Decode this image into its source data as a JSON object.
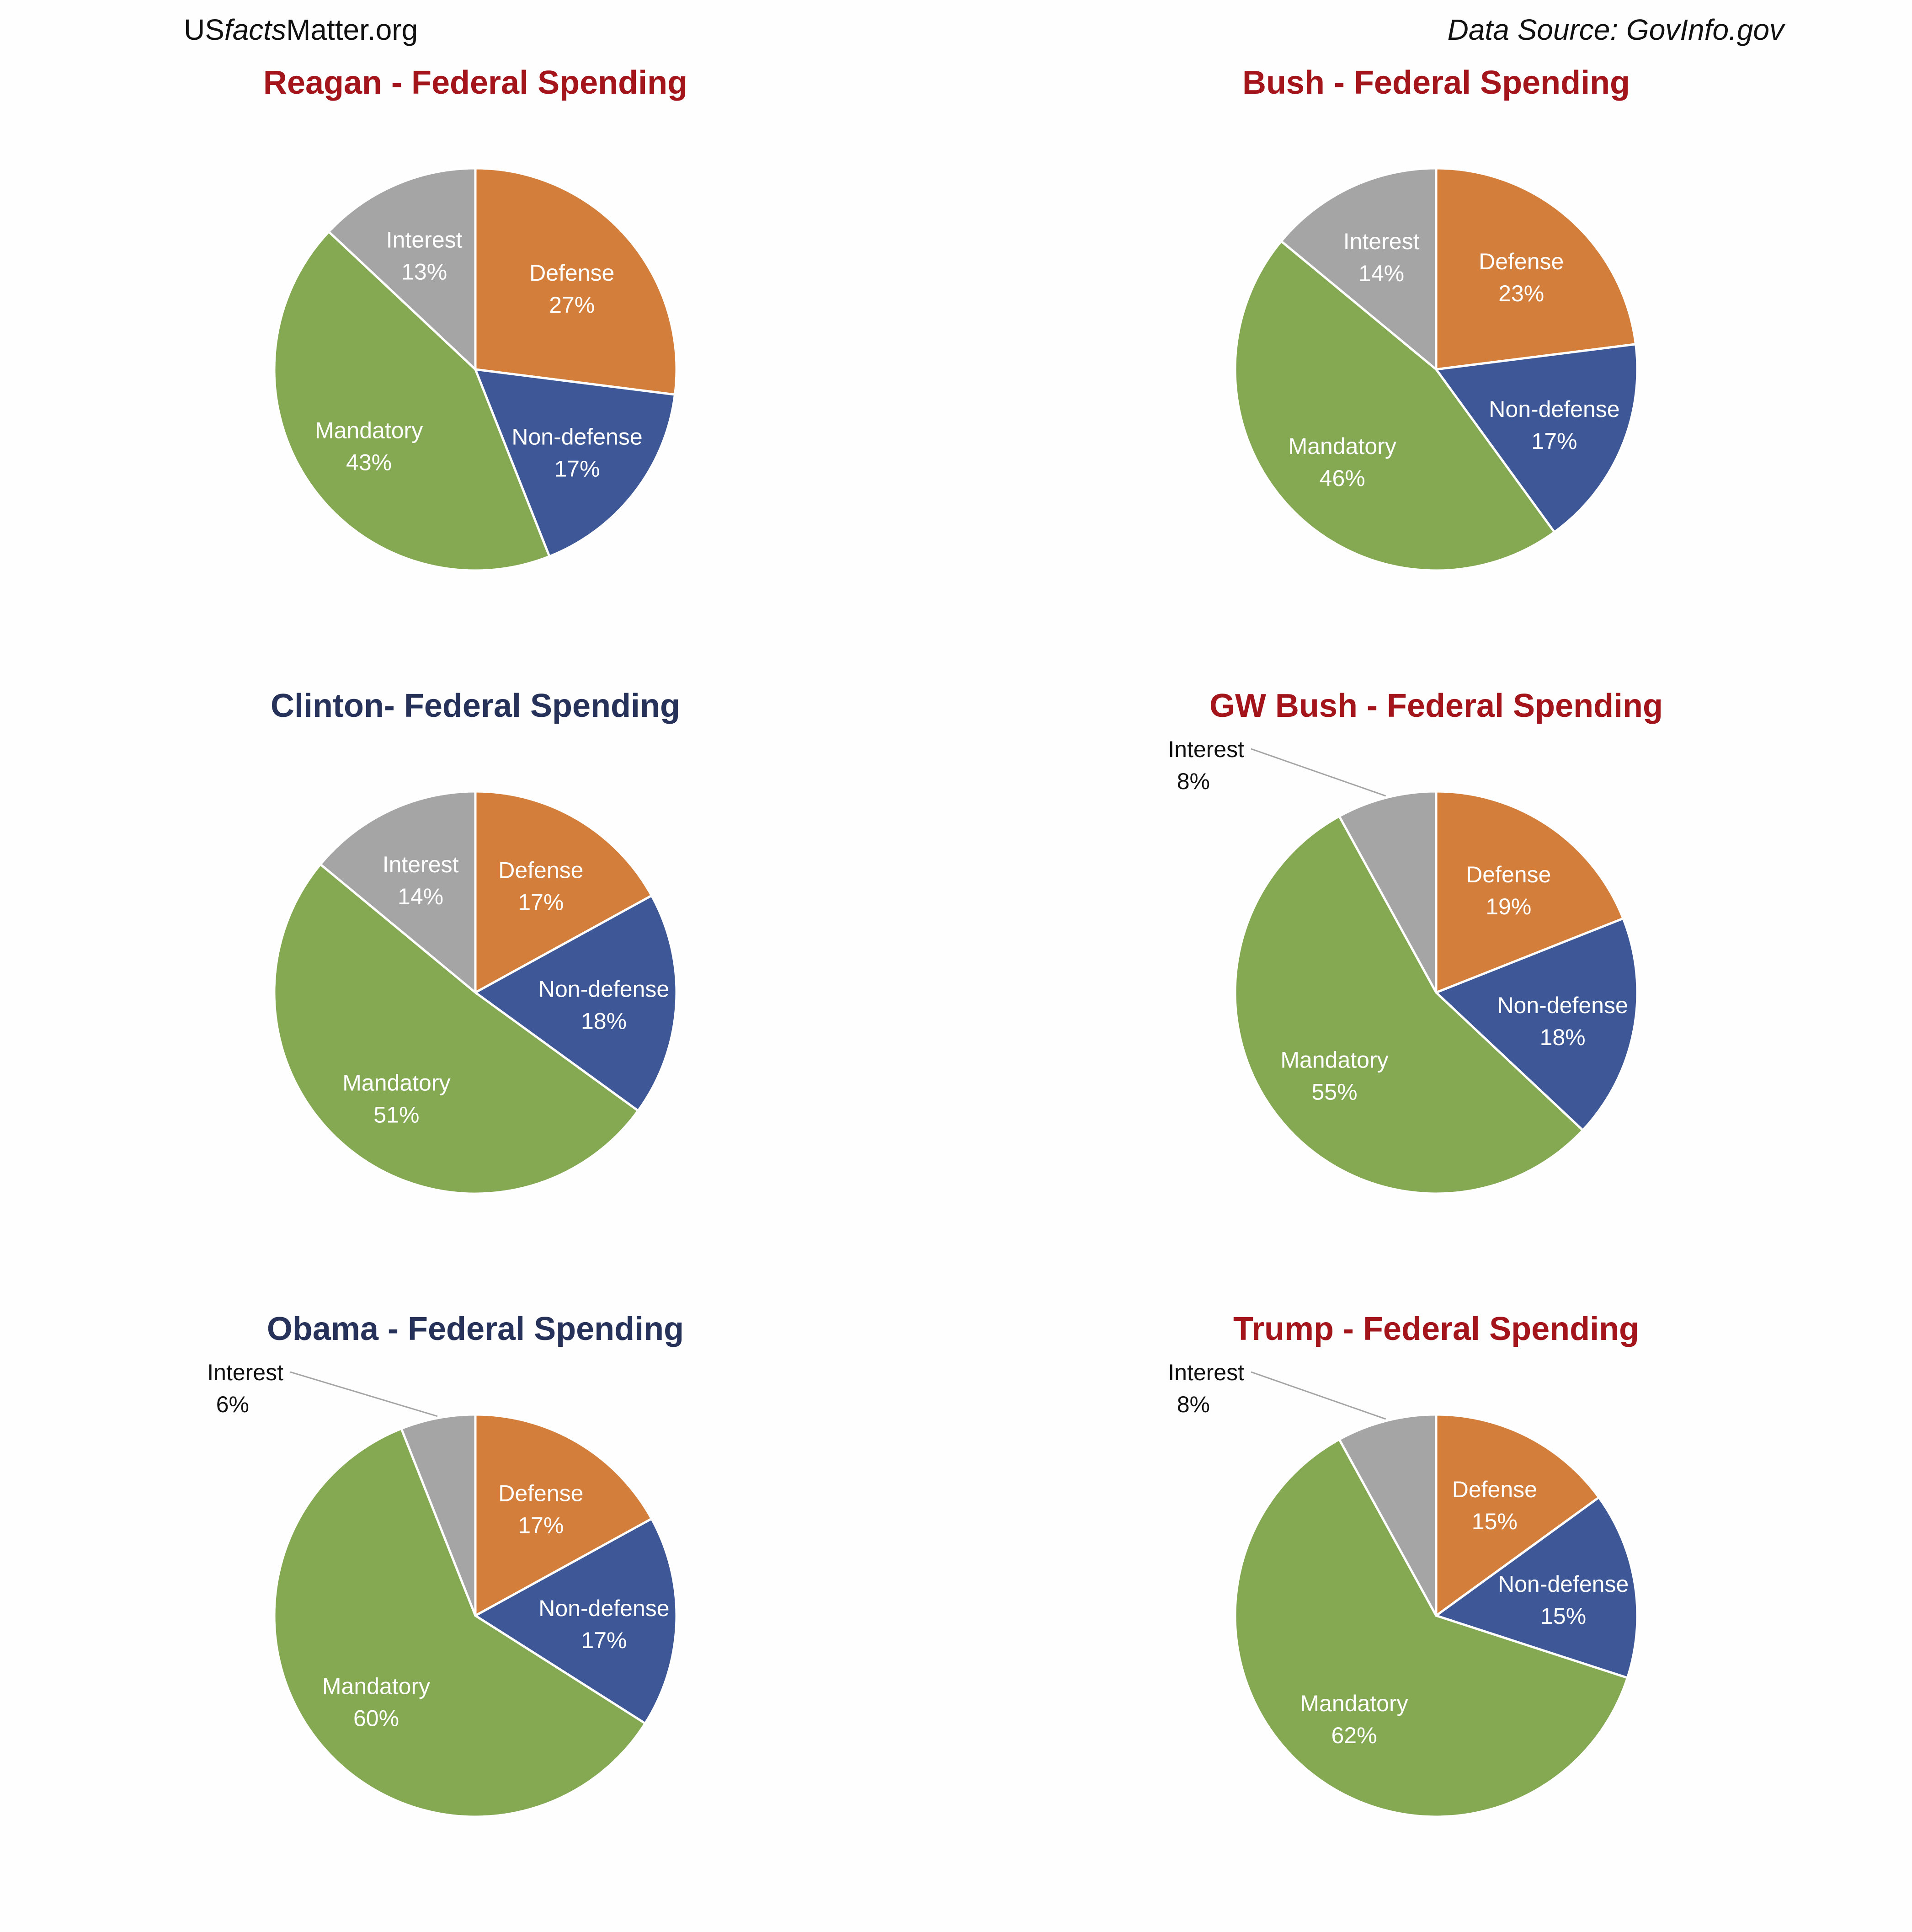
{
  "header": {
    "left_prefix": "US",
    "left_italic": "facts",
    "left_suffix": "Matter.org",
    "right": "Data Source: GovInfo.gov"
  },
  "colors": {
    "Defense": "#d47e3c",
    "Non-defense": "#3e5796",
    "Mandatory": "#84a952",
    "Interest": "#a5a5a5",
    "republican_title": "#a3151a",
    "democrat_title": "#263259"
  },
  "chart_data": [
    {
      "type": "pie",
      "title": "Reagan -  Federal Spending",
      "title_color": "#a3151a",
      "categories": [
        "Defense",
        "Non-defense",
        "Mandatory",
        "Interest"
      ],
      "values": [
        27,
        17,
        43,
        13
      ],
      "labels": [
        "27%",
        "17%",
        "43%",
        "13%"
      ]
    },
    {
      "type": "pie",
      "title": "Bush -  Federal Spending",
      "title_color": "#a3151a",
      "categories": [
        "Defense",
        "Non-defense",
        "Mandatory",
        "Interest"
      ],
      "values": [
        23,
        17,
        46,
        14
      ],
      "labels": [
        "23%",
        "17%",
        "46%",
        "14%"
      ]
    },
    {
      "type": "pie",
      "title": "Clinton-  Federal Spending",
      "title_color": "#263259",
      "categories": [
        "Defense",
        "Non-defense",
        "Mandatory",
        "Interest"
      ],
      "values": [
        17,
        18,
        51,
        14
      ],
      "labels": [
        "17%",
        "18%",
        "51%",
        "14%"
      ]
    },
    {
      "type": "pie",
      "title": "GW Bush - Federal Spending",
      "title_color": "#a3151a",
      "categories": [
        "Defense",
        "Non-defense",
        "Mandatory",
        "Interest"
      ],
      "values": [
        19,
        18,
        55,
        8
      ],
      "labels": [
        "19%",
        "18%",
        "55%",
        "8%"
      ],
      "outside_label": "Interest"
    },
    {
      "type": "pie",
      "title": "Obama - Federal Spending",
      "title_color": "#263259",
      "categories": [
        "Defense",
        "Non-defense",
        "Mandatory",
        "Interest"
      ],
      "values": [
        17,
        17,
        60,
        6
      ],
      "labels": [
        "17%",
        "17%",
        "60%",
        "6%"
      ],
      "outside_label": "Interest"
    },
    {
      "type": "pie",
      "title": "Trump - Federal Spending",
      "title_color": "#a3151a",
      "categories": [
        "Defense",
        "Non-defense",
        "Mandatory",
        "Interest"
      ],
      "values": [
        15,
        15,
        62,
        8
      ],
      "labels": [
        "15%",
        "15%",
        "62%",
        "8%"
      ],
      "outside_label": "Interest"
    }
  ]
}
